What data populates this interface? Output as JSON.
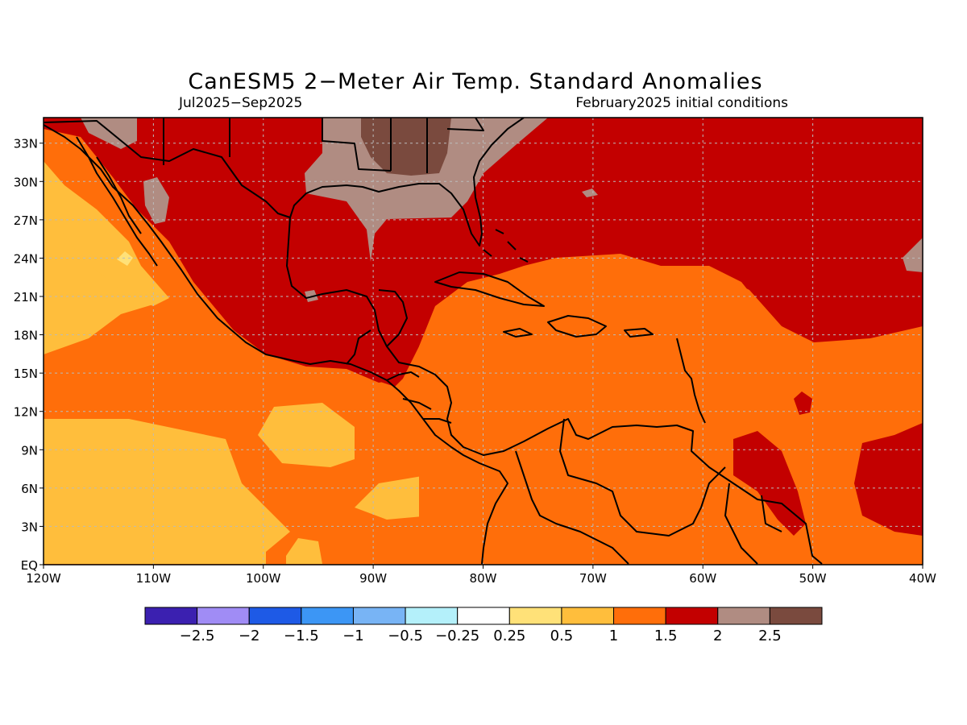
{
  "title": "CanESM5 2−Meter Air Temp. Standard Anomalies",
  "subtitle_left": "Jul2025−Sep2025",
  "subtitle_right": "February2025 initial conditions",
  "map": {
    "lon_range": [
      -120,
      -40
    ],
    "lat_range": [
      0,
      35
    ],
    "lon_ticks": [
      "120W",
      "110W",
      "100W",
      "90W",
      "80W",
      "70W",
      "60W",
      "50W",
      "40W"
    ],
    "lat_ticks": [
      "EQ",
      "3N",
      "6N",
      "9N",
      "12N",
      "15N",
      "18N",
      "21N",
      "24N",
      "27N",
      "30N",
      "33N"
    ],
    "grid": true
  },
  "colorbar": {
    "colors": [
      "#3b20b0",
      "#a08cf5",
      "#1e5ae6",
      "#3c96f5",
      "#78b4f5",
      "#b4f0fa",
      "#ffffff",
      "#ffe178",
      "#ffbe3c",
      "#ff6e0a",
      "#c30000",
      "#b08c82",
      "#7a4a3e"
    ],
    "labels": [
      "−2.5",
      "−2",
      "−1.5",
      "−1",
      "−0.5",
      "−0.25",
      "0.25",
      "0.5",
      "1",
      "1.5",
      "2",
      "2.5"
    ]
  },
  "regions": {
    "c05": "#ffbe3c",
    "c1": "#ff6e0a",
    "c15": "#c30000",
    "c2": "#b08c82",
    "c25": "#7a4a3e",
    "c025": "#ffe178",
    "c0": "#ffffff"
  }
}
